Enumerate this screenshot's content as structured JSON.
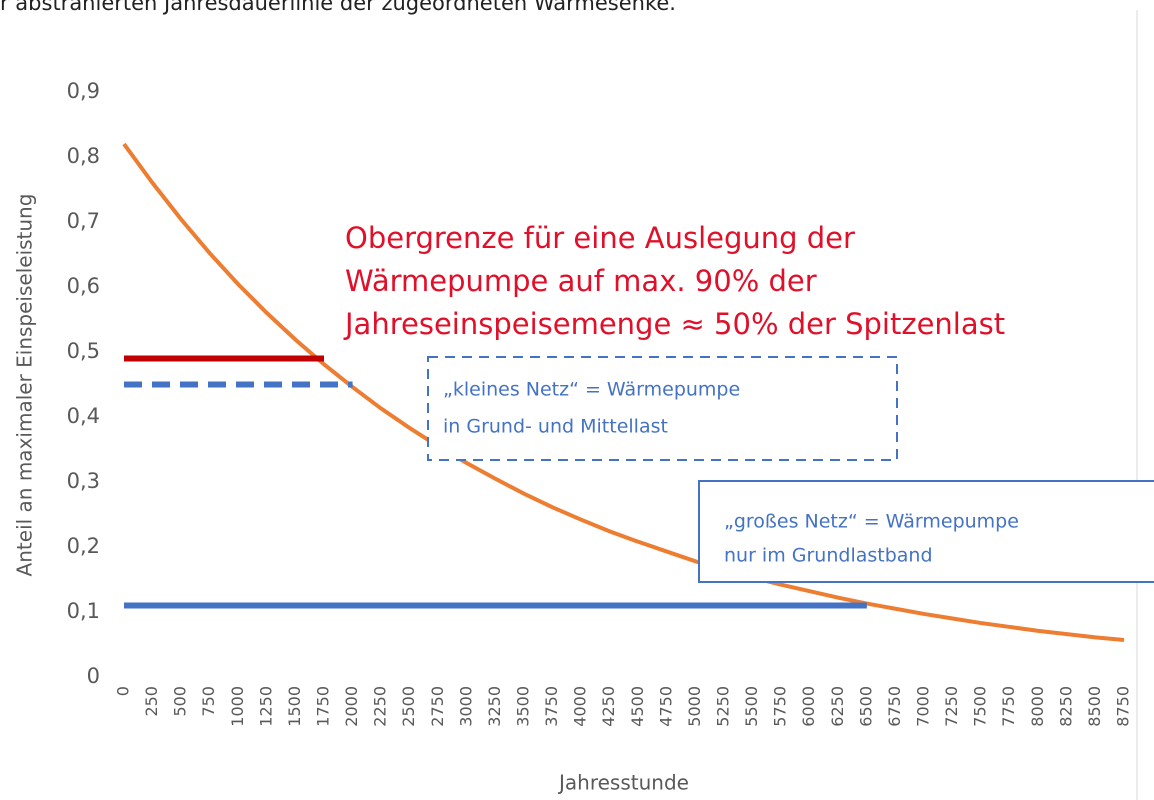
{
  "caption": "r abstrahierten Jahresdauerlinie der zugeordneten Wärmesenke.",
  "chart_data": {
    "type": "line",
    "ylabel": "Anteil an maximaler Einspeiseleistung",
    "xlabel": "Jahresstunde",
    "xlim": [
      0,
      8750
    ],
    "xticks": [
      0,
      250,
      500,
      750,
      1000,
      1250,
      1500,
      1750,
      2000,
      2250,
      2500,
      2750,
      3000,
      3250,
      3500,
      3750,
      4000,
      4250,
      4500,
      4750,
      5000,
      5250,
      5500,
      5750,
      6000,
      6250,
      6500,
      6750,
      7000,
      7250,
      7500,
      7750,
      8000,
      8250,
      8500,
      8750
    ],
    "ylim": [
      0,
      0.9
    ],
    "yticks": [
      0,
      {
        "value": 0.1,
        "label": "0,1"
      },
      {
        "value": 0.2,
        "label": "0,2"
      },
      {
        "value": 0.3,
        "label": "0,3"
      },
      {
        "value": 0.4,
        "label": "0,4"
      },
      {
        "value": 0.5,
        "label": "0,5"
      },
      {
        "value": 0.6,
        "label": "0,6"
      },
      {
        "value": 0.7,
        "label": "0,7"
      },
      {
        "value": 0.8,
        "label": "0,8"
      },
      {
        "value": 0.9,
        "label": "0,9"
      }
    ],
    "grid": false,
    "series": [
      {
        "color": "#ed7d31",
        "style": "solid",
        "x": [
          0,
          250,
          500,
          750,
          1000,
          1250,
          1500,
          1750,
          2000,
          2250,
          2500,
          2750,
          3000,
          3250,
          3500,
          3750,
          4000,
          4250,
          4500,
          4750,
          5000,
          5250,
          5500,
          5750,
          6000,
          6250,
          6500,
          6750,
          7000,
          7250,
          7500,
          7750,
          8000,
          8250,
          8500,
          8750
        ],
        "values": [
          0.82,
          0.76,
          0.704,
          0.652,
          0.604,
          0.56,
          0.519,
          0.481,
          0.446,
          0.413,
          0.383,
          0.355,
          0.329,
          0.305,
          0.282,
          0.261,
          0.242,
          0.224,
          0.208,
          0.193,
          0.178,
          0.165,
          0.153,
          0.142,
          0.132,
          0.122,
          0.113,
          0.105,
          0.097,
          0.09,
          0.083,
          0.077,
          0.071,
          0.066,
          0.061,
          0.057
        ]
      },
      {
        "color": "#c00000",
        "style": "solid",
        "x": [
          0,
          1750
        ],
        "values": [
          0.49,
          0.49
        ]
      },
      {
        "color": "#4472c4",
        "style": "dashed",
        "x": [
          0,
          2000
        ],
        "values": [
          0.45,
          0.45
        ]
      },
      {
        "color": "#4472c4",
        "style": "solid",
        "x": [
          0,
          6500
        ],
        "values": [
          0.11,
          0.11
        ]
      }
    ],
    "annotations": [
      {
        "lines": [
          "Obergrenze für eine Auslegung der",
          "Wärmepumpe auf max. 90% der",
          "Jahreseinspeisemenge ≈ 50% der Spitzenlast"
        ],
        "color": "#e0102a",
        "box": "none"
      },
      {
        "lines": [
          "„kleines Netz“ = Wärmepumpe",
          "in Grund- und Mittellast"
        ],
        "color": "#4472c4",
        "box": "dashed"
      },
      {
        "lines": [
          "„großes Netz“ = Wärmepumpe",
          "nur im Grundlastband"
        ],
        "color": "#4472c4",
        "box": "solid"
      }
    ]
  }
}
